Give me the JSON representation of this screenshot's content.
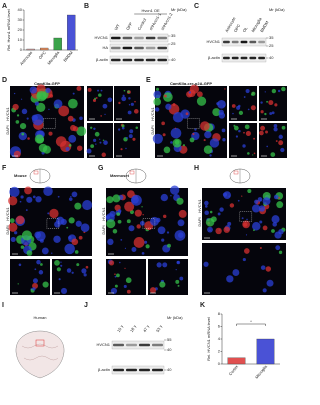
{
  "letters": [
    "A",
    "B",
    "C",
    "D",
    "E",
    "F",
    "G",
    "H",
    "I",
    "J",
    "K"
  ],
  "chart_data": [
    {
      "type": "bar",
      "y_label": "Rel. Hvcn1 mRNA level",
      "categories": [
        "Astrocyte",
        "OPC",
        "Microglia",
        "BMDM"
      ],
      "values": [
        1,
        2,
        12,
        35
      ],
      "colors": [
        "#d9a6a6",
        "#e08a5c",
        "#3aa34a",
        "#4a52d6"
      ],
      "ylim": [
        0,
        40
      ],
      "yticks": [
        0,
        10,
        20,
        30,
        40
      ]
    },
    {
      "type": "bar",
      "y_label": "Rel. HVCN1 mRNA level",
      "categories": [
        "Cortex",
        "Microglia"
      ],
      "values": [
        1,
        4
      ],
      "colors": [
        "#e05050",
        "#4a52d6"
      ],
      "ylim": [
        0,
        8
      ],
      "yticks": [
        0,
        2,
        4,
        6,
        8
      ],
      "annotation": "*"
    }
  ],
  "blots": [
    {
      "group": "Hvcn1 OE",
      "lanes": [
        "WT",
        "GFP",
        "Control",
        "shHvcn1-1",
        "shHvcn1-2"
      ],
      "rows": [
        "HVCN1",
        "HA",
        "β-actin"
      ],
      "unit": "Mr (kDa)",
      "markers": [
        35,
        25,
        40
      ]
    },
    {
      "lanes": [
        "Astrocyte",
        "OPC",
        "OL",
        "Microglia",
        "BMDM"
      ],
      "rows": [
        "HVCN1",
        "β-actin"
      ],
      "unit": "Mr (kDa)",
      "markers": [
        35,
        25,
        40
      ]
    },
    {
      "lanes": [
        "15 y",
        "18 y",
        "47 y",
        "53 y"
      ],
      "rows": [
        "HVCN1",
        "β-actin"
      ],
      "unit": "Mr (kDa)",
      "markers": [
        55,
        40,
        40
      ]
    }
  ],
  "images": [
    {
      "title": "CamKIIα-GFP",
      "channels": [
        "HVCN1",
        "DAPI"
      ]
    },
    {
      "title": "CamKIIα-cre-p2A-GFP",
      "channels": [
        "HVCN1",
        "DAPI"
      ]
    },
    {
      "title": "Mouse",
      "channels": [
        "HVCN1",
        "DAPI"
      ]
    },
    {
      "title": "Marmoset",
      "channels": [
        "HVCN1",
        "DAPI"
      ]
    },
    {
      "channels": [
        "HVCN1",
        "DAPI"
      ]
    },
    {
      "title": "Human"
    }
  ]
}
